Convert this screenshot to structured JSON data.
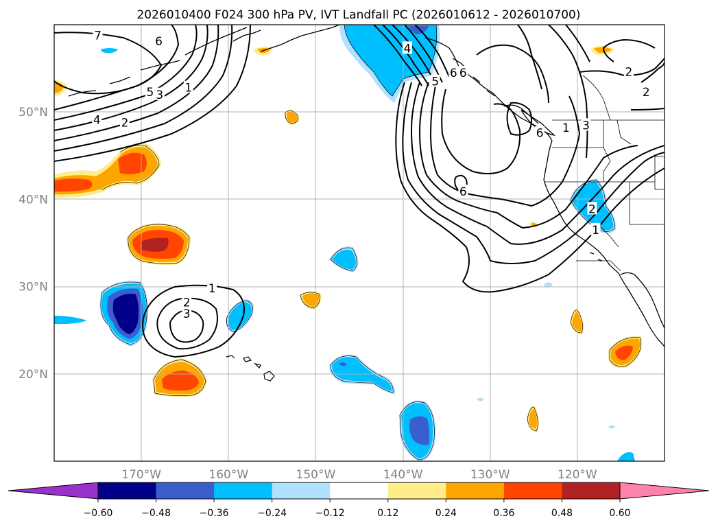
{
  "title": "2026010400 F024 300 hPa PV, IVT Landfall PC (2026010612 - 2026010700)",
  "colors": {
    "neg_over": "#9932cc",
    "neg6": "#00008b",
    "neg5": "#3a5fcd",
    "neg4": "#00bfff",
    "neg3": "#b0e2ff",
    "zero": "#ffffff",
    "pos1": "#ffec8b",
    "pos2": "#ffa500",
    "pos3": "#ff4500",
    "pos4": "#b22222",
    "pos_over": "#ff82ab",
    "grid": "#b0b0b0",
    "contour": "#000000",
    "coast": "#000000",
    "axis_text": "#808080"
  },
  "map": {
    "lon_range": [
      -180,
      -110
    ],
    "lat_range": [
      10,
      60
    ],
    "lon_ticks": [
      {
        "value": -170,
        "label": "170°W"
      },
      {
        "value": -160,
        "label": "160°W"
      },
      {
        "value": -150,
        "label": "150°W"
      },
      {
        "value": -140,
        "label": "140°W"
      },
      {
        "value": -130,
        "label": "130°W"
      },
      {
        "value": -120,
        "label": "120°W"
      }
    ],
    "lat_ticks": [
      {
        "value": 50,
        "label": "50°N"
      },
      {
        "value": 40,
        "label": "40°N"
      },
      {
        "value": 30,
        "label": "30°N"
      },
      {
        "value": 20,
        "label": "20°N"
      }
    ]
  },
  "colorbar": {
    "levels": [
      -0.6,
      -0.48,
      -0.36,
      -0.24,
      -0.12,
      0.12,
      0.24,
      0.36,
      0.48,
      0.6
    ],
    "tick_labels": [
      "−0.60",
      "−0.48",
      "−0.36",
      "−0.24",
      "−0.12",
      "0.12",
      "0.24",
      "0.36",
      "0.48",
      "0.60"
    ]
  },
  "contour_labels": [
    {
      "text": "7",
      "lon": -175,
      "lat": 58.8
    },
    {
      "text": "6",
      "lon": -168,
      "lat": 58.1
    },
    {
      "text": "5",
      "lon": -169,
      "lat": 52.3
    },
    {
      "text": "3",
      "lon": -167.9,
      "lat": 52.0
    },
    {
      "text": "1",
      "lon": -164.6,
      "lat": 52.8
    },
    {
      "text": "4",
      "lon": -175.1,
      "lat": 49.1
    },
    {
      "text": "2",
      "lon": -171.9,
      "lat": 48.8
    },
    {
      "text": "4",
      "lon": -139.5,
      "lat": 57.3
    },
    {
      "text": "5",
      "lon": -136.3,
      "lat": 53.5
    },
    {
      "text": "6",
      "lon": -134.2,
      "lat": 54.5
    },
    {
      "text": "6",
      "lon": -133.1,
      "lat": 54.5
    },
    {
      "text": "6",
      "lon": -124.3,
      "lat": 47.6
    },
    {
      "text": "3",
      "lon": -119.0,
      "lat": 48.5
    },
    {
      "text": "1",
      "lon": -121.3,
      "lat": 48.2
    },
    {
      "text": "2",
      "lon": -114.1,
      "lat": 54.6
    },
    {
      "text": "2",
      "lon": -112.1,
      "lat": 52.3
    },
    {
      "text": "6",
      "lon": -133.1,
      "lat": 40.9
    },
    {
      "text": "2",
      "lon": -118.3,
      "lat": 38.9
    },
    {
      "text": "1",
      "lon": -117.9,
      "lat": 36.5
    },
    {
      "text": "1",
      "lon": -161.9,
      "lat": 29.8
    },
    {
      "text": "2",
      "lon": -164.8,
      "lat": 28.2
    },
    {
      "text": "3",
      "lon": -164.8,
      "lat": 26.9
    }
  ]
}
